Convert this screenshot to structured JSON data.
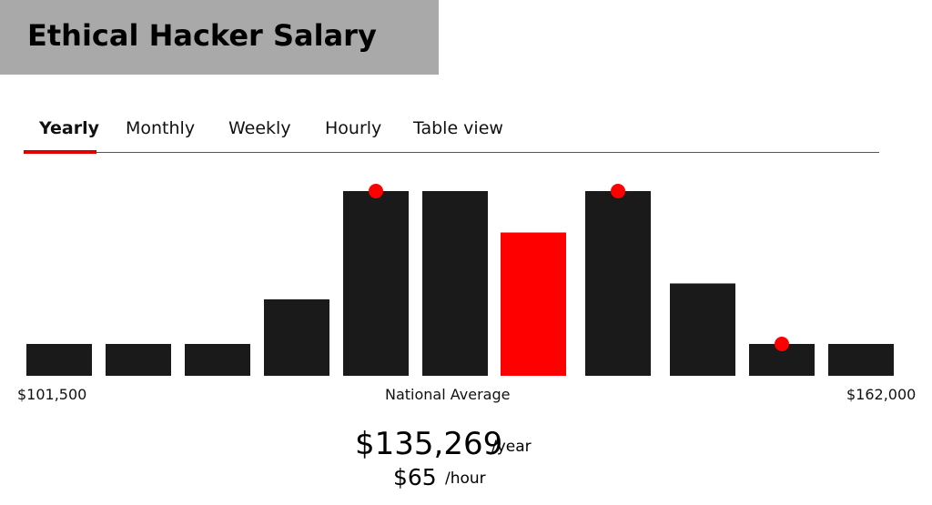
{
  "header": {
    "title": "Ethical Hacker Salary"
  },
  "tabs": [
    {
      "label": "Yearly",
      "active": true
    },
    {
      "label": "Monthly",
      "active": false
    },
    {
      "label": "Weekly",
      "active": false
    },
    {
      "label": "Hourly",
      "active": false
    },
    {
      "label": "Table view",
      "active": false
    }
  ],
  "colors": {
    "bar": "#1a1a1a",
    "highlight": "#ff0000",
    "accent": "#e00000",
    "title_bg": "#a9a9a9"
  },
  "chart_data": {
    "type": "bar",
    "title": "",
    "xlabel": "",
    "ylabel": "",
    "x_min_label": "$101,500",
    "x_max_label": "$162,000",
    "center_label": "National Average",
    "values": [
      1,
      1,
      1,
      2.4,
      5.8,
      5.8,
      4.5,
      5.8,
      2.9,
      1,
      1
    ],
    "highlight_index": 6,
    "marker_indices": [
      4,
      7,
      9
    ],
    "ylim": [
      0,
      6
    ],
    "grid": false,
    "legend": "none"
  },
  "summary": {
    "yearly_value": "$135,269",
    "yearly_unit": "/year",
    "hourly_value": "$65",
    "hourly_unit": "/hour"
  }
}
